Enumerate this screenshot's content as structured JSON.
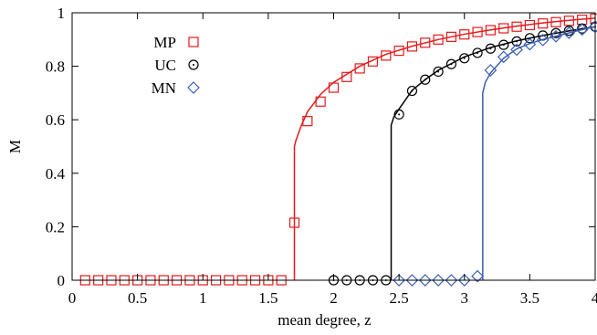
{
  "chart_data": {
    "type": "line",
    "xlabel": "mean degree, z",
    "ylabel": "M",
    "xlim": [
      0,
      4
    ],
    "ylim": [
      0,
      1
    ],
    "xticks": [
      0,
      0.5,
      1,
      1.5,
      2,
      2.5,
      3,
      3.5,
      4
    ],
    "xtick_labels": [
      "0",
      "0.5",
      "1",
      "1.5",
      "2",
      "2.5",
      "3",
      "3.5",
      "4"
    ],
    "yticks": [
      0,
      0.2,
      0.4,
      0.6,
      0.8,
      1
    ],
    "ytick_labels": [
      "0",
      "0.2",
      "0.4",
      "0.6",
      "0.8",
      "1"
    ],
    "grid": false,
    "legend_position": "top-left",
    "series": [
      {
        "name": "MP",
        "color": "#e41a1c",
        "marker": "square",
        "zc": 1.7,
        "line": [
          [
            1.7,
            0
          ],
          [
            1.7,
            0.5
          ],
          [
            1.71,
            0.52
          ],
          [
            1.75,
            0.575
          ],
          [
            1.8,
            0.63
          ],
          [
            1.9,
            0.695
          ],
          [
            2.0,
            0.74
          ],
          [
            2.2,
            0.8
          ],
          [
            2.4,
            0.845
          ],
          [
            2.6,
            0.875
          ],
          [
            2.8,
            0.9
          ],
          [
            3.0,
            0.92
          ],
          [
            3.2,
            0.936
          ],
          [
            3.4,
            0.95
          ],
          [
            3.6,
            0.962
          ],
          [
            3.8,
            0.972
          ],
          [
            4.0,
            0.98
          ]
        ],
        "points": [
          [
            0.1,
            0
          ],
          [
            0.2,
            0
          ],
          [
            0.3,
            0
          ],
          [
            0.4,
            0
          ],
          [
            0.5,
            0
          ],
          [
            0.6,
            0
          ],
          [
            0.7,
            0
          ],
          [
            0.8,
            0
          ],
          [
            0.9,
            0
          ],
          [
            1.0,
            0
          ],
          [
            1.1,
            0
          ],
          [
            1.2,
            0
          ],
          [
            1.3,
            0
          ],
          [
            1.4,
            0
          ],
          [
            1.5,
            0
          ],
          [
            1.6,
            0
          ],
          [
            1.7,
            0.215
          ],
          [
            1.8,
            0.595
          ],
          [
            1.9,
            0.668
          ],
          [
            2.0,
            0.72
          ],
          [
            2.1,
            0.76
          ],
          [
            2.2,
            0.792
          ],
          [
            2.3,
            0.818
          ],
          [
            2.4,
            0.84
          ],
          [
            2.5,
            0.858
          ],
          [
            2.6,
            0.874
          ],
          [
            2.7,
            0.888
          ],
          [
            2.8,
            0.9
          ],
          [
            2.9,
            0.91
          ],
          [
            3.0,
            0.919
          ],
          [
            3.1,
            0.928
          ],
          [
            3.2,
            0.935
          ],
          [
            3.3,
            0.942
          ],
          [
            3.4,
            0.948
          ],
          [
            3.5,
            0.954
          ],
          [
            3.6,
            0.96
          ],
          [
            3.7,
            0.965
          ],
          [
            3.8,
            0.97
          ],
          [
            3.9,
            0.974
          ],
          [
            4.0,
            0.978
          ]
        ]
      },
      {
        "name": "UC",
        "color": "#000000",
        "marker": "circle",
        "zc": 2.44,
        "line": [
          [
            2.44,
            0
          ],
          [
            2.44,
            0.58
          ],
          [
            2.46,
            0.61
          ],
          [
            2.5,
            0.64
          ],
          [
            2.6,
            0.71
          ],
          [
            2.7,
            0.75
          ],
          [
            2.8,
            0.785
          ],
          [
            3.0,
            0.835
          ],
          [
            3.2,
            0.87
          ],
          [
            3.4,
            0.895
          ],
          [
            3.6,
            0.915
          ],
          [
            3.8,
            0.932
          ],
          [
            4.0,
            0.948
          ]
        ],
        "points": [
          [
            2.0,
            0
          ],
          [
            2.1,
            0
          ],
          [
            2.2,
            0
          ],
          [
            2.3,
            0
          ],
          [
            2.4,
            0
          ],
          [
            2.5,
            0.62
          ],
          [
            2.6,
            0.708
          ],
          [
            2.7,
            0.75
          ],
          [
            2.8,
            0.78
          ],
          [
            2.9,
            0.808
          ],
          [
            3.0,
            0.83
          ],
          [
            3.1,
            0.85
          ],
          [
            3.2,
            0.866
          ],
          [
            3.3,
            0.88
          ],
          [
            3.4,
            0.893
          ],
          [
            3.5,
            0.905
          ],
          [
            3.6,
            0.915
          ],
          [
            3.7,
            0.924
          ],
          [
            3.8,
            0.933
          ],
          [
            3.9,
            0.941
          ],
          [
            4.0,
            0.948
          ]
        ]
      },
      {
        "name": "MN",
        "color": "#3a5fb4",
        "marker": "diamond",
        "zc": 3.14,
        "line": [
          [
            3.14,
            0
          ],
          [
            3.14,
            0.7
          ],
          [
            3.16,
            0.74
          ],
          [
            3.2,
            0.775
          ],
          [
            3.3,
            0.83
          ],
          [
            3.4,
            0.865
          ],
          [
            3.5,
            0.885
          ],
          [
            3.6,
            0.9
          ],
          [
            3.7,
            0.912
          ],
          [
            3.8,
            0.925
          ],
          [
            3.9,
            0.937
          ],
          [
            4.0,
            0.948
          ]
        ],
        "points": [
          [
            2.5,
            0
          ],
          [
            2.6,
            0
          ],
          [
            2.7,
            0
          ],
          [
            2.8,
            0
          ],
          [
            2.9,
            0
          ],
          [
            3.0,
            0
          ],
          [
            3.1,
            0.015
          ],
          [
            3.2,
            0.785
          ],
          [
            3.3,
            0.835
          ],
          [
            3.4,
            0.862
          ],
          [
            3.5,
            0.882
          ],
          [
            3.6,
            0.898
          ],
          [
            3.7,
            0.912
          ],
          [
            3.8,
            0.925
          ],
          [
            3.9,
            0.937
          ],
          [
            4.0,
            0.948
          ]
        ]
      }
    ]
  }
}
